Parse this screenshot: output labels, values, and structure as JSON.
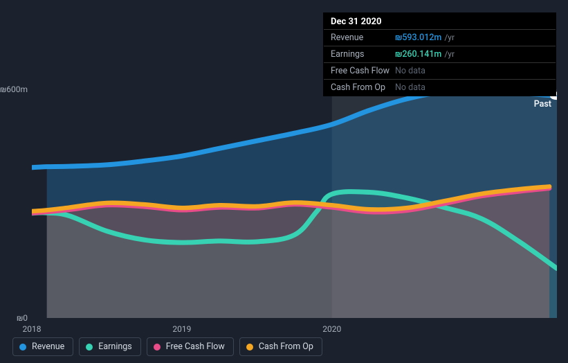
{
  "background_color": "#1b222d",
  "tooltip": {
    "title": "Dec 31 2020",
    "rows": [
      {
        "label": "Revenue",
        "value": "₪593.012m",
        "suffix": "/yr",
        "color_class": "val-blue"
      },
      {
        "label": "Earnings",
        "value": "₪260.141m",
        "suffix": "/yr",
        "color_class": "val-teal"
      },
      {
        "label": "Free Cash Flow",
        "value": "No data",
        "suffix": "",
        "color_class": "val-none"
      },
      {
        "label": "Cash From Op",
        "value": "No data",
        "suffix": "",
        "color_class": "val-none"
      }
    ]
  },
  "chart": {
    "type": "area",
    "currency": "₪",
    "xlim": [
      2018,
      2021.5
    ],
    "ylim": [
      0,
      600
    ],
    "y_ticks": [
      {
        "v": 0,
        "label": "₪0"
      },
      {
        "v": 600,
        "label": "₪600m"
      }
    ],
    "x_ticks": [
      {
        "v": 2018,
        "label": "2018"
      },
      {
        "v": 2019,
        "label": "2019"
      },
      {
        "v": 2020,
        "label": "2020"
      }
    ],
    "past_label": "Past",
    "highlight_x": 2020,
    "highlight_color": "rgba(255,255,255,0.075)",
    "clip_x_start": 2018.1,
    "series": [
      {
        "name": "Revenue",
        "stroke": "#2394df",
        "fill": "rgba(35,148,223,0.28)",
        "stroke_width": 2.2,
        "points": [
          [
            2018,
            395
          ],
          [
            2018.1,
            397
          ],
          [
            2018.25,
            398
          ],
          [
            2018.5,
            402
          ],
          [
            2018.75,
            412
          ],
          [
            2019,
            425
          ],
          [
            2019.25,
            445
          ],
          [
            2019.5,
            465
          ],
          [
            2019.75,
            485
          ],
          [
            2020,
            508
          ],
          [
            2020.25,
            545
          ],
          [
            2020.5,
            575
          ],
          [
            2020.75,
            593
          ],
          [
            2021,
            593
          ],
          [
            2021.25,
            590
          ],
          [
            2021.5,
            583
          ]
        ]
      },
      {
        "name": "Earnings",
        "stroke": "#37d1b3",
        "fill": "rgba(55,209,179,0.12)",
        "stroke_width": 2.2,
        "points": [
          [
            2018,
            275
          ],
          [
            2018.1,
            276
          ],
          [
            2018.25,
            268
          ],
          [
            2018.5,
            228
          ],
          [
            2018.75,
            205
          ],
          [
            2019,
            198
          ],
          [
            2019.25,
            202
          ],
          [
            2019.5,
            200
          ],
          [
            2019.75,
            218
          ],
          [
            2019.9,
            280
          ],
          [
            2020,
            325
          ],
          [
            2020.25,
            330
          ],
          [
            2020.5,
            315
          ],
          [
            2020.75,
            290
          ],
          [
            2021,
            260
          ],
          [
            2021.25,
            200
          ],
          [
            2021.5,
            130
          ]
        ]
      },
      {
        "name": "Free Cash Flow",
        "stroke": "#e84d8a",
        "fill": "rgba(232,77,138,0.18)",
        "stroke_width": 2,
        "points": [
          [
            2018,
            275
          ],
          [
            2018.1,
            278
          ],
          [
            2018.25,
            284
          ],
          [
            2018.5,
            296
          ],
          [
            2018.75,
            292
          ],
          [
            2019,
            283
          ],
          [
            2019.25,
            290
          ],
          [
            2019.5,
            288
          ],
          [
            2019.75,
            298
          ],
          [
            2020,
            290
          ],
          [
            2020.25,
            278
          ],
          [
            2020.5,
            282
          ],
          [
            2020.75,
            300
          ],
          [
            2021,
            320
          ],
          [
            2021.25,
            332
          ],
          [
            2021.45,
            340
          ]
        ]
      },
      {
        "name": "Cash From Op",
        "stroke": "#f5a623",
        "fill": "rgba(245,166,35,0.12)",
        "stroke_width": 2,
        "points": [
          [
            2018,
            280
          ],
          [
            2018.1,
            283
          ],
          [
            2018.25,
            290
          ],
          [
            2018.5,
            302
          ],
          [
            2018.75,
            298
          ],
          [
            2019,
            289
          ],
          [
            2019.25,
            296
          ],
          [
            2019.5,
            293
          ],
          [
            2019.75,
            303
          ],
          [
            2020,
            296
          ],
          [
            2020.25,
            285
          ],
          [
            2020.5,
            289
          ],
          [
            2020.75,
            307
          ],
          [
            2021,
            326
          ],
          [
            2021.25,
            338
          ],
          [
            2021.45,
            345
          ]
        ]
      }
    ],
    "legend": [
      {
        "label": "Revenue",
        "color": "#2394df"
      },
      {
        "label": "Earnings",
        "color": "#37d1b3"
      },
      {
        "label": "Free Cash Flow",
        "color": "#e84d8a"
      },
      {
        "label": "Cash From Op",
        "color": "#f5a623"
      }
    ]
  }
}
